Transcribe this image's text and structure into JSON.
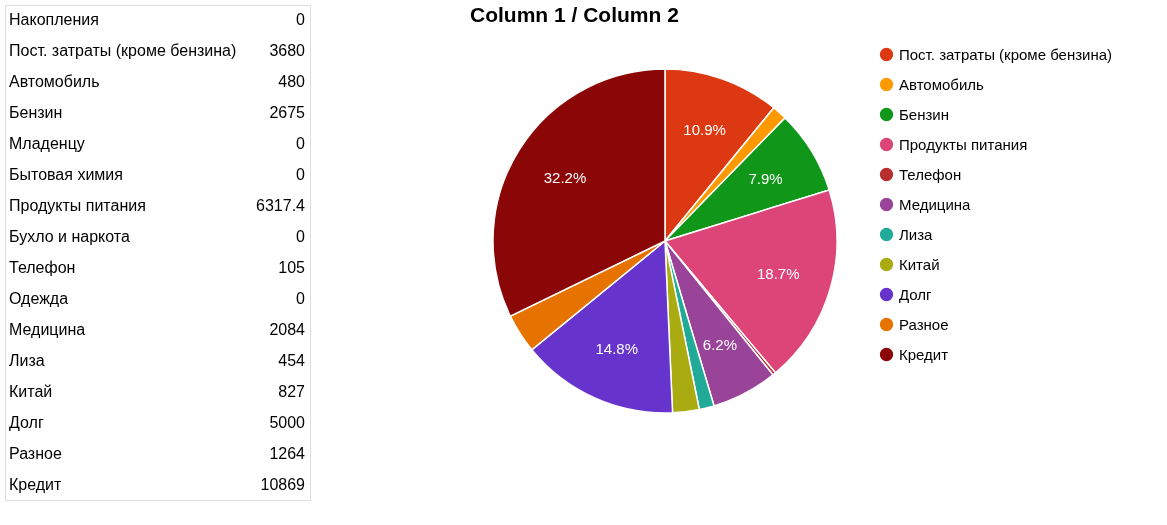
{
  "chart_data": [
    {
      "type": "other",
      "categories": [
        "Накопления",
        "Пост. затраты (кроме бензина)",
        "Автомобиль",
        "Бензин",
        "Младенцу",
        "Бытовая химия",
        "Продукты питания",
        "Бухло и наркота",
        "Телефон",
        "Одежда",
        "Медицина",
        "Лиза",
        "Китай",
        "Долг",
        "Разное",
        "Кредит"
      ],
      "values": [
        0,
        3680,
        480,
        2675,
        0,
        0,
        6317.4,
        0,
        105,
        0,
        2084,
        454,
        827,
        5000,
        1264,
        10869
      ],
      "data_labels": true
    },
    {
      "type": "pie",
      "title": "Column 1 / Column 2",
      "categories": [
        "Пост. затраты (кроме бензина)",
        "Автомобиль",
        "Бензин",
        "Продукты питания",
        "Телефон",
        "Медицина",
        "Лиза",
        "Китай",
        "Долг",
        "Разное",
        "Кредит"
      ],
      "values": [
        10.9,
        1.4,
        7.9,
        18.7,
        0.3,
        6.2,
        1.4,
        2.5,
        14.8,
        3.7,
        32.2
      ],
      "colors": [
        "#dc3912",
        "#ff9900",
        "#109618",
        "#dd4477",
        "#b82e2e",
        "#994499",
        "#22aa99",
        "#aaaa11",
        "#6633cc",
        "#e67300",
        "#8b0707"
      ],
      "value_labels": [
        "10.9%",
        null,
        "7.9%",
        "18.7%",
        null,
        "6.2%",
        null,
        null,
        "14.8%",
        null,
        "32.2%"
      ],
      "legend": "right"
    }
  ]
}
